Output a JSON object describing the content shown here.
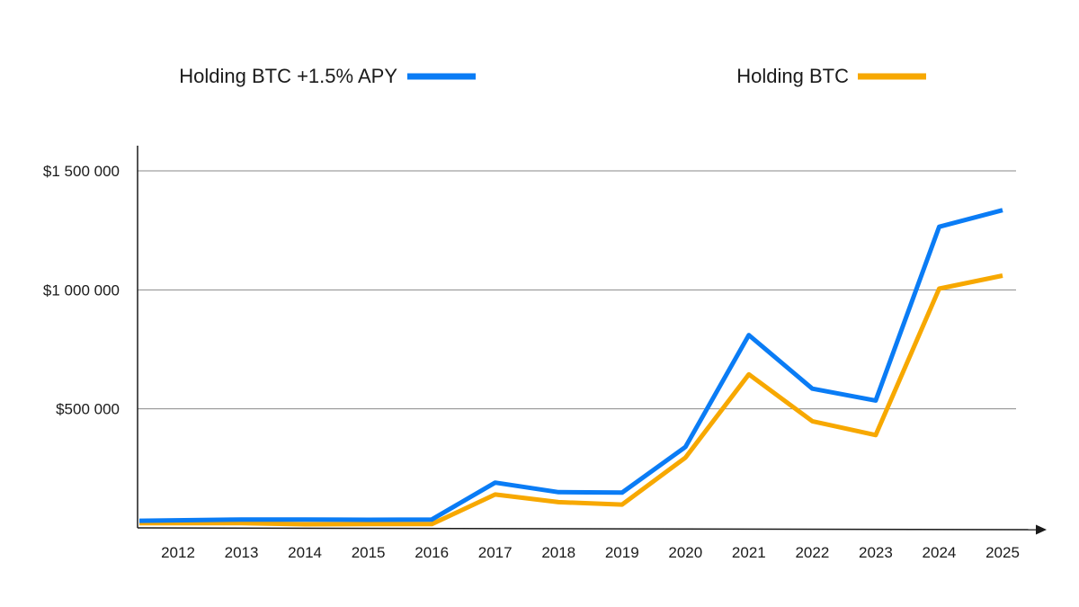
{
  "chart_data": {
    "type": "line",
    "title": "",
    "xlabel": "",
    "ylabel": "",
    "x": [
      "2012",
      "2013",
      "2014",
      "2015",
      "2016",
      "2017",
      "2018",
      "2019",
      "2020",
      "2021",
      "2022",
      "2023",
      "2024",
      "2025"
    ],
    "y_ticks": [
      {
        "value": 500000,
        "label": "$500 000"
      },
      {
        "value": 1000000,
        "label": "$1 000 000"
      },
      {
        "value": 1500000,
        "label": "$1 500 000"
      }
    ],
    "ylim": [
      0,
      1500000
    ],
    "grid": "horizontal",
    "legend_position": "top",
    "series": [
      {
        "name": "Holding BTC +1.5% APY",
        "color": "#0a7cf5",
        "values": [
          30000,
          35000,
          35000,
          34000,
          35000,
          190000,
          150000,
          148000,
          340000,
          810000,
          585000,
          535000,
          1265000,
          1335000
        ]
      },
      {
        "name": "Holding BTC",
        "color": "#f7a800",
        "values": [
          20000,
          20000,
          15000,
          16000,
          16000,
          140000,
          108000,
          98000,
          295000,
          645000,
          448000,
          390000,
          1005000,
          1060000
        ]
      }
    ]
  }
}
